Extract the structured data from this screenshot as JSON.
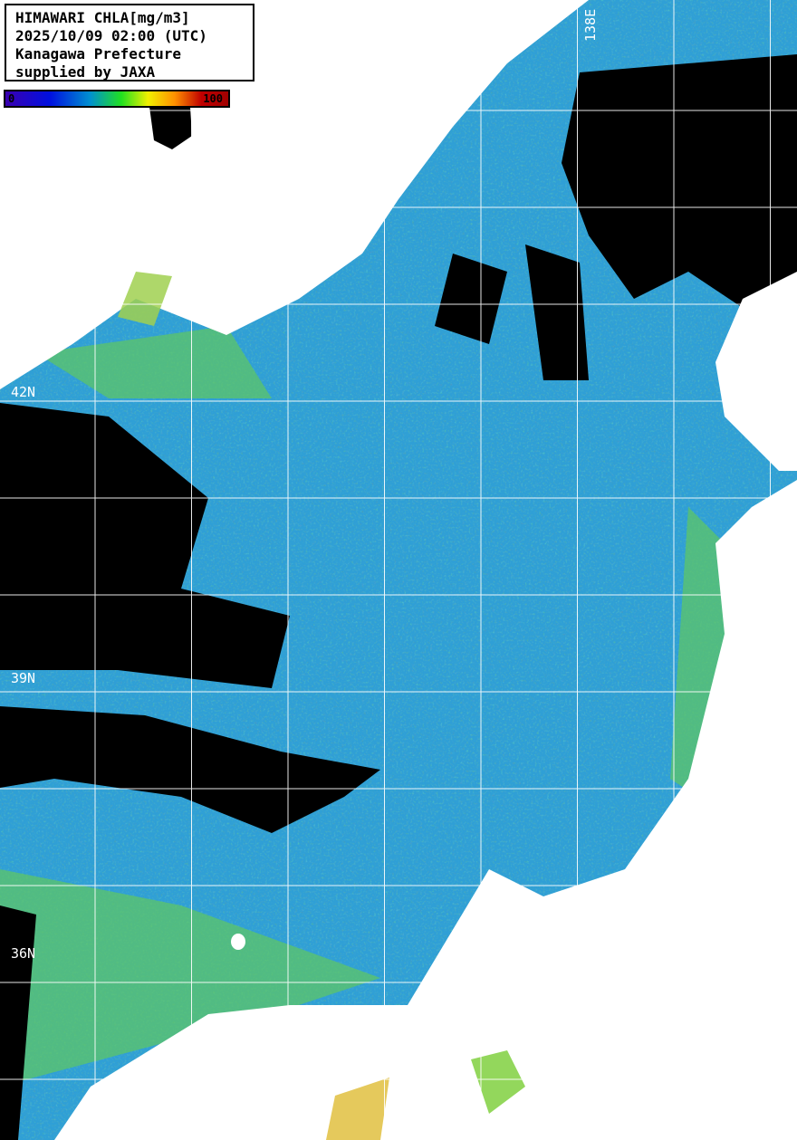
{
  "legend": {
    "lines": [
      "HIMAWARI CHLA[mg/m3]",
      "2025/10/09 02:00 (UTC)",
      "Kanagawa Prefecture",
      "supplied by JAXA"
    ],
    "colorbar": {
      "min_label": "0",
      "max_label": "100",
      "colors": [
        "#3a00b0",
        "#0010e0",
        "#0090d0",
        "#20e020",
        "#f0f000",
        "#ff9000",
        "#c00000"
      ]
    }
  },
  "grid": {
    "lat_labels": [
      "42N",
      "39N",
      "36N"
    ],
    "lon_labels": [
      "138E"
    ]
  },
  "colors": {
    "land": "#ffffff",
    "cloud": "#000000",
    "sea_typical": "#2f9fd6",
    "grid": "#ffffff"
  }
}
